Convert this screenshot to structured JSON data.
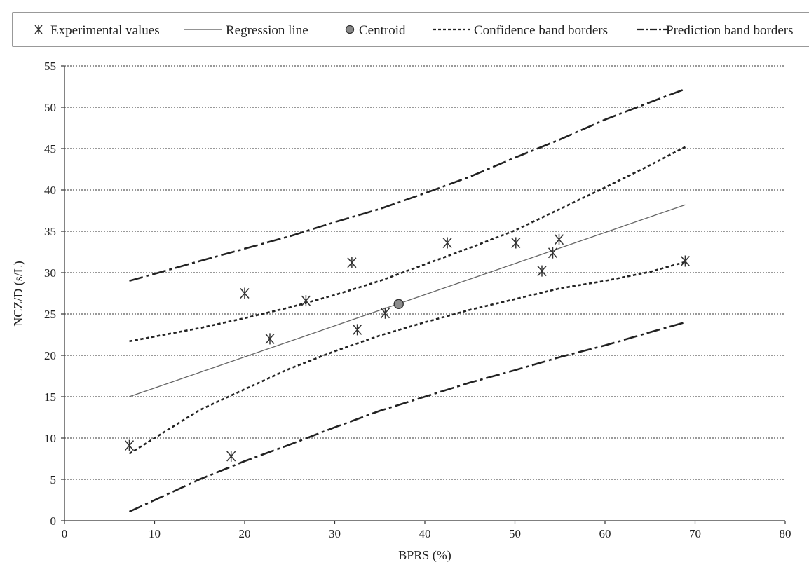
{
  "chart_data": {
    "type": "scatter",
    "title": "",
    "xlabel": "BPRS (%)",
    "ylabel": "NCZ/D (s/L)",
    "xlim": [
      0,
      80
    ],
    "ylim": [
      0,
      55
    ],
    "xticks": [
      0,
      10,
      20,
      30,
      40,
      50,
      60,
      70,
      80
    ],
    "yticks": [
      0,
      5,
      10,
      15,
      20,
      25,
      30,
      35,
      40,
      45,
      50,
      55
    ],
    "grid": "horizontal",
    "legend_position": "top",
    "legend": [
      {
        "label": "Experimental values",
        "marker": "asterisk"
      },
      {
        "label": "Regression line",
        "style": "solid"
      },
      {
        "label": "Centroid",
        "marker": "circle"
      },
      {
        "label": "Confidence band borders",
        "style": "dashed"
      },
      {
        "label": "Prediction band borders",
        "style": "dash-dot"
      }
    ],
    "series": [
      {
        "name": "Experimental values",
        "kind": "points",
        "points": [
          {
            "x": 7.2,
            "y": 9.1
          },
          {
            "x": 18.5,
            "y": 7.8
          },
          {
            "x": 20.0,
            "y": 27.5
          },
          {
            "x": 22.8,
            "y": 22.0
          },
          {
            "x": 26.8,
            "y": 26.6
          },
          {
            "x": 31.9,
            "y": 31.2
          },
          {
            "x": 32.5,
            "y": 23.1
          },
          {
            "x": 35.6,
            "y": 25.1
          },
          {
            "x": 42.5,
            "y": 33.6
          },
          {
            "x": 50.1,
            "y": 33.6
          },
          {
            "x": 53.0,
            "y": 30.2
          },
          {
            "x": 54.2,
            "y": 32.4
          },
          {
            "x": 54.9,
            "y": 34.0
          },
          {
            "x": 68.9,
            "y": 31.4
          }
        ]
      },
      {
        "name": "Regression line",
        "kind": "line",
        "style": "solid",
        "points": [
          {
            "x": 7.2,
            "y": 15.0
          },
          {
            "x": 68.9,
            "y": 38.2
          }
        ]
      },
      {
        "name": "Centroid",
        "kind": "centroid",
        "points": [
          {
            "x": 37.1,
            "y": 26.2
          }
        ]
      },
      {
        "name": "Confidence band borders",
        "kind": "line",
        "style": "dashed",
        "points": [
          {
            "x": 7.2,
            "y": 21.7
          },
          {
            "x": 15,
            "y": 23.3
          },
          {
            "x": 20,
            "y": 24.5
          },
          {
            "x": 25,
            "y": 25.8
          },
          {
            "x": 30,
            "y": 27.3
          },
          {
            "x": 35,
            "y": 29.0
          },
          {
            "x": 40,
            "y": 31.0
          },
          {
            "x": 45,
            "y": 33.0
          },
          {
            "x": 50,
            "y": 35.1
          },
          {
            "x": 55,
            "y": 37.7
          },
          {
            "x": 60,
            "y": 40.3
          },
          {
            "x": 65,
            "y": 43.0
          },
          {
            "x": 68.9,
            "y": 45.2
          }
        ]
      },
      {
        "name": "Confidence band borders",
        "kind": "line",
        "style": "dashed",
        "points": [
          {
            "x": 7.2,
            "y": 8.1
          },
          {
            "x": 10,
            "y": 10.0
          },
          {
            "x": 15,
            "y": 13.4
          },
          {
            "x": 20,
            "y": 15.9
          },
          {
            "x": 25,
            "y": 18.4
          },
          {
            "x": 30,
            "y": 20.5
          },
          {
            "x": 35,
            "y": 22.4
          },
          {
            "x": 40,
            "y": 24.0
          },
          {
            "x": 45,
            "y": 25.5
          },
          {
            "x": 50,
            "y": 26.8
          },
          {
            "x": 55,
            "y": 28.1
          },
          {
            "x": 60,
            "y": 29.0
          },
          {
            "x": 65,
            "y": 30.1
          },
          {
            "x": 68.9,
            "y": 31.3
          }
        ]
      },
      {
        "name": "Prediction band borders",
        "kind": "line",
        "style": "dash-dot",
        "points": [
          {
            "x": 7.2,
            "y": 29.0
          },
          {
            "x": 15,
            "y": 31.4
          },
          {
            "x": 20,
            "y": 32.9
          },
          {
            "x": 25,
            "y": 34.4
          },
          {
            "x": 30,
            "y": 36.1
          },
          {
            "x": 35,
            "y": 37.7
          },
          {
            "x": 40,
            "y": 39.6
          },
          {
            "x": 45,
            "y": 41.6
          },
          {
            "x": 50,
            "y": 43.9
          },
          {
            "x": 55,
            "y": 46.1
          },
          {
            "x": 60,
            "y": 48.5
          },
          {
            "x": 65,
            "y": 50.6
          },
          {
            "x": 68.9,
            "y": 52.2
          }
        ]
      },
      {
        "name": "Prediction band borders",
        "kind": "line",
        "style": "dash-dot",
        "points": [
          {
            "x": 7.2,
            "y": 1.1
          },
          {
            "x": 15,
            "y": 5.0
          },
          {
            "x": 20,
            "y": 7.2
          },
          {
            "x": 25,
            "y": 9.2
          },
          {
            "x": 30,
            "y": 11.3
          },
          {
            "x": 35,
            "y": 13.3
          },
          {
            "x": 40,
            "y": 15.0
          },
          {
            "x": 45,
            "y": 16.7
          },
          {
            "x": 50,
            "y": 18.2
          },
          {
            "x": 55,
            "y": 19.8
          },
          {
            "x": 60,
            "y": 21.2
          },
          {
            "x": 65,
            "y": 22.8
          },
          {
            "x": 68.9,
            "y": 24.0
          }
        ]
      }
    ]
  }
}
